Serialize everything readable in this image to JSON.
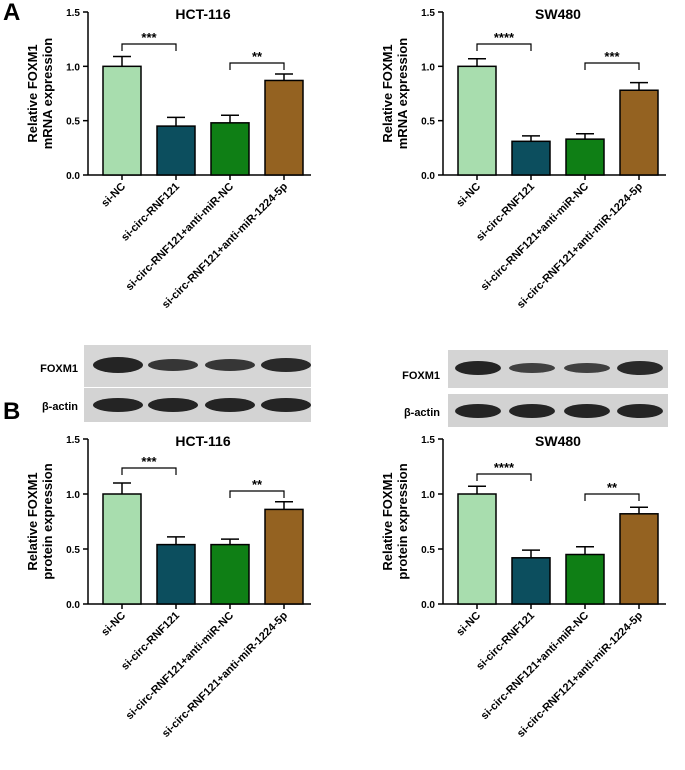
{
  "panels": {
    "a": "A",
    "b": "B"
  },
  "colors": {
    "si_nc": "#a8ddae",
    "si_circ": "#0c4e5e",
    "anti_nc": "#0f7f15",
    "anti_mir": "#946221",
    "axis": "#000000"
  },
  "chart_data": [
    {
      "type": "bar",
      "title": "HCT-116",
      "ylabel": [
        "Relative FOXM1",
        "mRNA expression"
      ],
      "ylim": [
        0,
        1.5
      ],
      "yticks": [
        "0.0",
        "0.5",
        "1.0",
        "1.5"
      ],
      "categories": [
        "si-NC",
        "si-circ-RNF121",
        "si-circ-RNF121+anti-miR-NC",
        "si-circ-RNF121+anti-miR-1224-5p"
      ],
      "values": [
        1.0,
        0.45,
        0.48,
        0.87
      ],
      "errors": [
        0.09,
        0.08,
        0.07,
        0.06
      ],
      "comparisons": [
        {
          "from": 0,
          "to": 1,
          "label": "***"
        },
        {
          "from": 2,
          "to": 3,
          "label": "**"
        }
      ]
    },
    {
      "type": "bar",
      "title": "SW480",
      "ylabel": [
        "Relative FOXM1",
        "mRNA expression"
      ],
      "ylim": [
        0,
        1.5
      ],
      "yticks": [
        "0.0",
        "0.5",
        "1.0",
        "1.5"
      ],
      "categories": [
        "si-NC",
        "si-circ-RNF121",
        "si-circ-RNF121+anti-miR-NC",
        "si-circ-RNF121+anti-miR-1224-5p"
      ],
      "values": [
        1.0,
        0.31,
        0.33,
        0.78
      ],
      "errors": [
        0.07,
        0.05,
        0.05,
        0.07
      ],
      "comparisons": [
        {
          "from": 0,
          "to": 1,
          "label": "****"
        },
        {
          "from": 2,
          "to": 3,
          "label": "***"
        }
      ]
    },
    {
      "type": "bar",
      "title": "HCT-116",
      "ylabel": [
        "Relative FOXM1",
        "protein expression"
      ],
      "ylim": [
        0,
        1.5
      ],
      "yticks": [
        "0.0",
        "0.5",
        "1.0",
        "1.5"
      ],
      "categories": [
        "si-NC",
        "si-circ-RNF121",
        "si-circ-RNF121+anti-miR-NC",
        "si-circ-RNF121+anti-miR-1224-5p"
      ],
      "values": [
        1.0,
        0.54,
        0.54,
        0.86
      ],
      "errors": [
        0.1,
        0.07,
        0.05,
        0.07
      ],
      "comparisons": [
        {
          "from": 0,
          "to": 1,
          "label": "***"
        },
        {
          "from": 2,
          "to": 3,
          "label": "**"
        }
      ]
    },
    {
      "type": "bar",
      "title": "SW480",
      "ylabel": [
        "Relative FOXM1",
        "protein expression"
      ],
      "ylim": [
        0,
        1.5
      ],
      "yticks": [
        "0.0",
        "0.5",
        "1.0",
        "1.5"
      ],
      "categories": [
        "si-NC",
        "si-circ-RNF121",
        "si-circ-RNF121+anti-miR-NC",
        "si-circ-RNF121+anti-miR-1224-5p"
      ],
      "values": [
        1.0,
        0.42,
        0.45,
        0.82
      ],
      "errors": [
        0.07,
        0.07,
        0.07,
        0.06
      ],
      "comparisons": [
        {
          "from": 0,
          "to": 1,
          "label": "****"
        },
        {
          "from": 2,
          "to": 3,
          "label": "**"
        }
      ]
    }
  ],
  "blots": [
    {
      "labels": [
        "FOXM1",
        "β-actin"
      ]
    },
    {
      "labels": [
        "FOXM1",
        "β-actin"
      ]
    }
  ]
}
